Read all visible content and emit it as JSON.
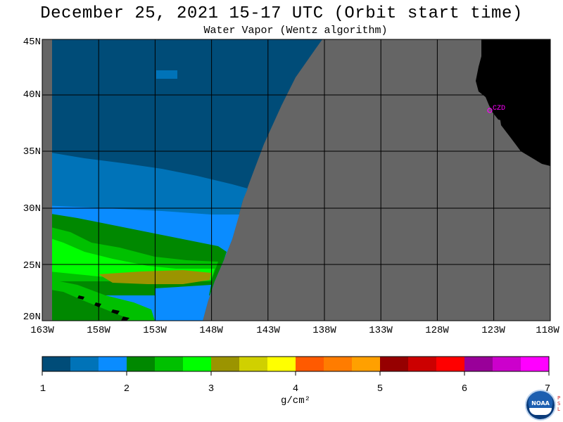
{
  "title": "December 25, 2021  15-17 UTC  (Orbit start time)",
  "subtitle": "Water Vapor (Wentz algorithm)",
  "latitude_labels": [
    "45N",
    "40N",
    "35N",
    "30N",
    "25N",
    "20N"
  ],
  "longitude_labels": [
    "163W",
    "158W",
    "153W",
    "148W",
    "143W",
    "138W",
    "133W",
    "128W",
    "123W",
    "118W"
  ],
  "colorbar": {
    "tick_labels": [
      "1",
      "2",
      "3",
      "4",
      "5",
      "6",
      "7"
    ],
    "unit": "g/cm²",
    "colors": [
      "#004c78",
      "#0073b8",
      "#0a8cff",
      "#008800",
      "#00c000",
      "#00ff00",
      "#9b9400",
      "#d0d000",
      "#ffff00",
      "#ff5a00",
      "#ff7c00",
      "#ffa000",
      "#960000",
      "#cc0000",
      "#ff0000",
      "#990099",
      "#cc00cc",
      "#ff00ff"
    ]
  },
  "map": {
    "city_label": "CZD",
    "colors": {
      "no_data": "#656565",
      "land": "#000000",
      "grid": "#000000",
      "city": "#ff00ff"
    }
  },
  "logo": {
    "noaa_text": "NOAA",
    "psl_letters": [
      "P",
      "S",
      "L"
    ]
  }
}
